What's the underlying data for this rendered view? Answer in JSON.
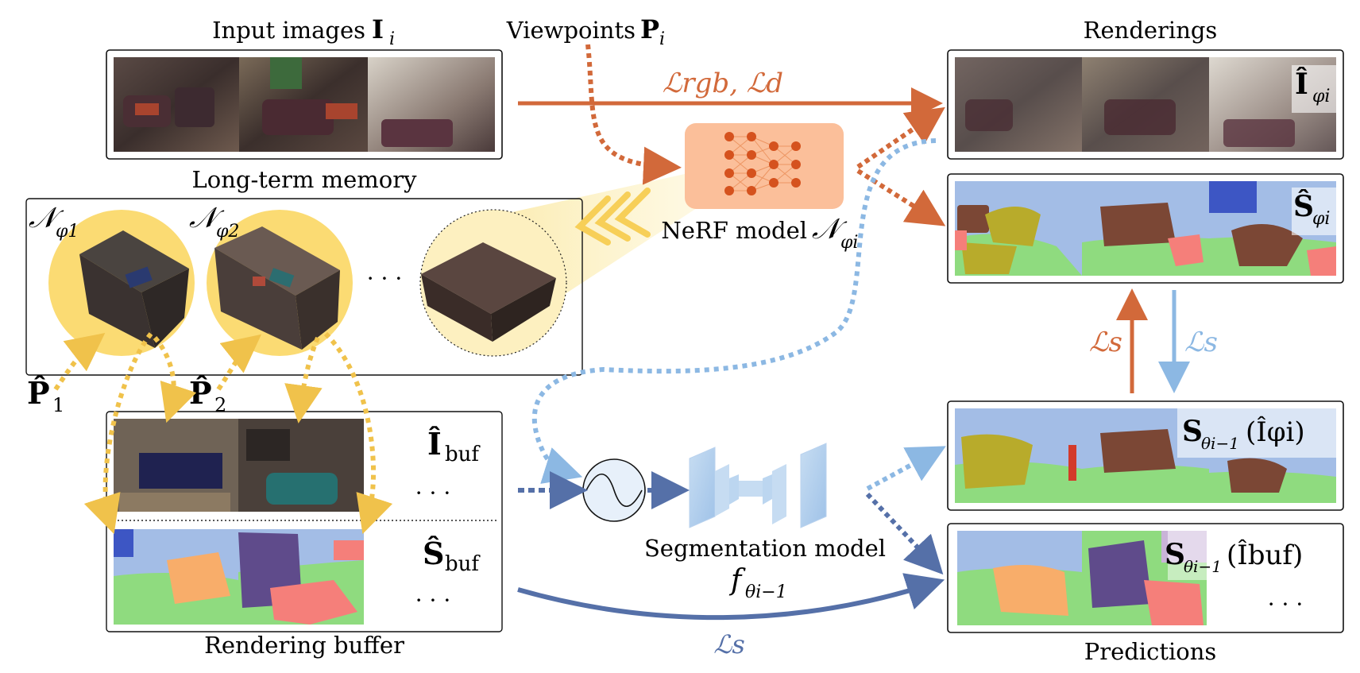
{
  "labels": {
    "input_images": "Input images",
    "input_images_sym": "I",
    "input_images_sub": "i",
    "viewpoints": "Viewpoints",
    "viewpoints_sym": "P",
    "viewpoints_sub": "i",
    "renderings": "Renderings",
    "long_term_memory": "Long-term memory",
    "nerf_model": "NeRF model",
    "nerf_sym": "𝒩",
    "nerf_sub": "φi",
    "rendering_buffer": "Rendering buffer",
    "predictions": "Predictions",
    "segmentation_model": "Segmentation model",
    "seg_sym": "f",
    "seg_sub": "θi−1"
  },
  "memory": {
    "n1_sym": "𝒩",
    "n1_sub": "φ1",
    "n2_sym": "𝒩",
    "n2_sub": "φ2",
    "ellipsis": "· · ·",
    "p1_sym": "P̂",
    "p1_sub": "1",
    "p2_sym": "P̂",
    "p2_sub": "2"
  },
  "buffer": {
    "i_buf_sym": "Î",
    "i_buf_sub": "buf",
    "s_buf_sym": "Ŝ",
    "s_buf_sub": "buf",
    "ellipsis": "· · ·"
  },
  "outputs": {
    "render_sym": "Î",
    "render_sub": "φi",
    "sem_sym": "Ŝ",
    "sem_sub": "φi",
    "pred1_sym": "S",
    "pred1_sub": "θi−1",
    "pred1_arg": "(Îφi)",
    "pred2_sym": "S",
    "pred2_sub": "θi−1",
    "pred2_arg": "(Îbuf)",
    "pred_ellipsis": "· · ·"
  },
  "losses": {
    "rgb_d": "ℒrgb,  ℒd",
    "ls_up": "ℒs",
    "ls_down": "ℒs",
    "ls_bottom": "ℒs"
  },
  "colors": {
    "orange": "#d2693a",
    "light_blue": "#8cb8e3",
    "dark_blue": "#5570a8",
    "yellow": "#f0c24b",
    "nerf_box": "#fbbf9a",
    "circle_yellow": "#fbdb73"
  }
}
